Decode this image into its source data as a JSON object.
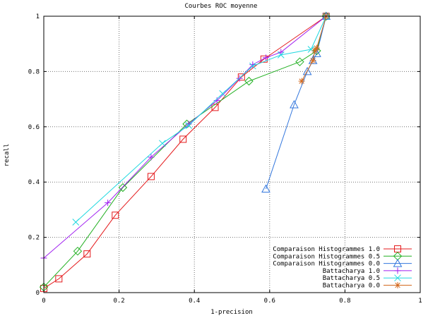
{
  "chart_data": {
    "type": "line",
    "title": "Courbes ROC moyenne",
    "xlabel": "1-precision",
    "ylabel": "recall",
    "xlim": [
      0,
      1
    ],
    "ylim": [
      0,
      1
    ],
    "xticks": [
      {
        "v": 0,
        "label": "0"
      },
      {
        "v": 0.2,
        "label": "0.2"
      },
      {
        "v": 0.4,
        "label": "0.4"
      },
      {
        "v": 0.6,
        "label": "0.6"
      },
      {
        "v": 0.8,
        "label": "0.8"
      },
      {
        "v": 1,
        "label": "1"
      }
    ],
    "yticks": [
      {
        "v": 0,
        "label": "0"
      },
      {
        "v": 0.2,
        "label": "0.2"
      },
      {
        "v": 0.4,
        "label": "0.4"
      },
      {
        "v": 0.6,
        "label": "0.6"
      },
      {
        "v": 0.8,
        "label": "0.8"
      },
      {
        "v": 1,
        "label": "1"
      }
    ],
    "grid": true,
    "legend_position": "bottom-right",
    "series": [
      {
        "name": "Comparaison Histogrammes 1.0",
        "color": "#e41a1c",
        "marker": "square",
        "points": [
          [
            0.0,
            0.015
          ],
          [
            0.04,
            0.05
          ],
          [
            0.115,
            0.14
          ],
          [
            0.19,
            0.28
          ],
          [
            0.285,
            0.42
          ],
          [
            0.37,
            0.555
          ],
          [
            0.455,
            0.67
          ],
          [
            0.525,
            0.78
          ],
          [
            0.585,
            0.845
          ],
          [
            0.75,
            1.0
          ]
        ]
      },
      {
        "name": "Comparaison Histogrammes 0.5",
        "color": "#22b022",
        "marker": "diamond",
        "points": [
          [
            0.0,
            0.02
          ],
          [
            0.09,
            0.15
          ],
          [
            0.21,
            0.38
          ],
          [
            0.38,
            0.61
          ],
          [
            0.545,
            0.765
          ],
          [
            0.68,
            0.835
          ],
          [
            0.725,
            0.875
          ],
          [
            0.75,
            1.0
          ]
        ]
      },
      {
        "name": "Comparaison Histogrammes 0.0",
        "color": "#3377dd",
        "marker": "triangle",
        "points": [
          [
            0.59,
            0.375
          ],
          [
            0.665,
            0.68
          ],
          [
            0.7,
            0.8
          ],
          [
            0.715,
            0.84
          ],
          [
            0.725,
            0.865
          ],
          [
            0.75,
            1.0
          ]
        ]
      },
      {
        "name": "Battacharya 1.0",
        "color": "#a020f0",
        "marker": "plus",
        "points": [
          [
            0.0,
            0.125
          ],
          [
            0.17,
            0.325
          ],
          [
            0.285,
            0.49
          ],
          [
            0.385,
            0.61
          ],
          [
            0.46,
            0.695
          ],
          [
            0.52,
            0.775
          ],
          [
            0.555,
            0.825
          ],
          [
            0.59,
            0.85
          ],
          [
            0.63,
            0.87
          ],
          [
            0.75,
            1.0
          ]
        ]
      },
      {
        "name": "Battacharya 0.5",
        "color": "#22d8e0",
        "marker": "cross",
        "points": [
          [
            0.085,
            0.255
          ],
          [
            0.315,
            0.54
          ],
          [
            0.385,
            0.605
          ],
          [
            0.475,
            0.72
          ],
          [
            0.555,
            0.82
          ],
          [
            0.63,
            0.86
          ],
          [
            0.71,
            0.88
          ],
          [
            0.75,
            1.0
          ]
        ]
      },
      {
        "name": "Battacharya 0.0",
        "color": "#d2691e",
        "marker": "star",
        "points": [
          [
            0.685,
            0.765
          ],
          [
            0.715,
            0.84
          ],
          [
            0.72,
            0.875
          ],
          [
            0.725,
            0.885
          ],
          [
            0.75,
            1.0
          ]
        ]
      }
    ]
  }
}
